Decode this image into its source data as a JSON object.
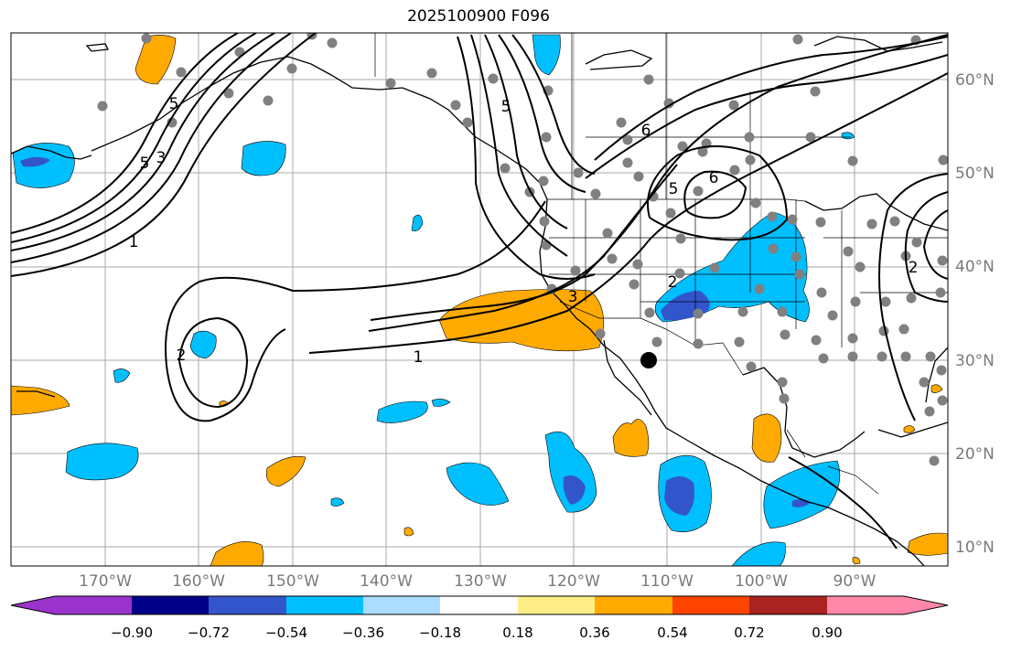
{
  "title": "2025100900 F096",
  "map": {
    "lon_labels": [
      "170°W",
      "160°W",
      "150°W",
      "140°W",
      "130°W",
      "120°W",
      "110°W",
      "100°W",
      "90°W"
    ],
    "lat_labels": [
      "60°N",
      "50°N",
      "40°N",
      "30°N",
      "20°N",
      "10°N"
    ],
    "contour_labels": [
      "5",
      "3",
      "1",
      "6",
      "5",
      "6",
      "5",
      "2",
      "3",
      "1",
      "2",
      "5",
      "2"
    ],
    "colors": {
      "land": "#ffffff",
      "grid": "#a9a9a9",
      "contour": "#000000",
      "station": "#808080"
    }
  },
  "colorbar": {
    "tick_labels": [
      "−0.90",
      "−0.72",
      "−0.54",
      "−0.36",
      "−0.18",
      "0.18",
      "0.36",
      "0.54",
      "0.72",
      "0.90"
    ],
    "colors": [
      "#9933cc",
      "#000088",
      "#3355cc",
      "#00bfff",
      "#aaddff",
      "#ffffff",
      "#ffee88",
      "#ffaa00",
      "#ff4400",
      "#aa2222",
      "#ff88aa"
    ]
  }
}
